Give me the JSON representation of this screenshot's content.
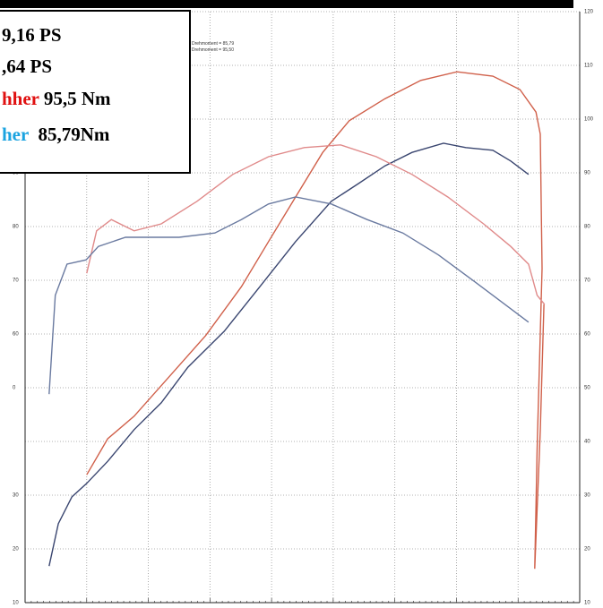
{
  "chart_data": {
    "type": "line",
    "xlim": [
      0,
      9
    ],
    "ylim": [
      10,
      120
    ],
    "yticks": [
      90,
      80,
      70,
      60,
      {
        "value": 50,
        "label": "0"
      },
      30,
      20,
      10
    ],
    "y2lim": [
      10,
      120
    ],
    "y2ticks": [
      120,
      110,
      100,
      90,
      80,
      70,
      60,
      50,
      40,
      30,
      20,
      10
    ],
    "grid": true,
    "annotations": [
      {
        "parts": [
          {
            "text": "9,16 PS",
            "color": "#000000"
          }
        ]
      },
      {
        "parts": [
          {
            "text": ",64 PS",
            "color": "#000000"
          }
        ]
      },
      {
        "parts": [
          {
            "text": "hher",
            "color": "#e01010"
          },
          {
            "text": " 95,5 Nm",
            "color": "#000000"
          }
        ]
      },
      {
        "parts": [
          {
            "text": "her",
            "color": "#1aa3e0"
          },
          {
            "text": "  85,79Nm",
            "color": "#000000"
          }
        ]
      }
    ],
    "notes": [
      "Drehmoment = 85,79",
      "s Drehmoment = 95,50"
    ],
    "series": [
      {
        "color": "#3a4670",
        "x": [
          0.39,
          0.54,
          0.76,
          1.0,
          1.34,
          1.77,
          2.21,
          2.64,
          3.23,
          3.81,
          4.39,
          4.97,
          5.41,
          5.84,
          6.28,
          6.79,
          7.15,
          7.59,
          7.88,
          8.17
        ],
        "values": [
          16.8,
          24.7,
          29.7,
          32.2,
          36.3,
          42.2,
          47.2,
          53.8,
          60.5,
          68.8,
          77.2,
          84.7,
          88,
          91.3,
          93.8,
          95.5,
          94.7,
          94.2,
          92.2,
          89.7
        ]
      },
      {
        "color": "#d0604a",
        "x": [
          1.0,
          1.34,
          1.77,
          2.35,
          2.93,
          3.51,
          3.95,
          4.39,
          4.83,
          5.26,
          5.84,
          6.42,
          7.01,
          7.59,
          8.03,
          8.29,
          8.36,
          8.39,
          8.31,
          8.27,
          8.36,
          8.42
        ],
        "values": [
          33.8,
          40.5,
          44.7,
          52.2,
          59.7,
          68.8,
          77.2,
          85.5,
          93.8,
          99.7,
          103.8,
          107.2,
          108.8,
          108,
          105.5,
          101.3,
          97.2,
          72.2,
          38.8,
          16.3,
          42,
          65.5
        ]
      },
      {
        "color": "#e08a8a",
        "x": [
          1.0,
          1.16,
          1.4,
          1.77,
          2.21,
          2.79,
          3.37,
          3.95,
          4.53,
          5.12,
          5.7,
          6.28,
          6.86,
          7.44,
          7.88,
          8.17,
          8.31,
          8.43
        ],
        "values": [
          71.3,
          79.2,
          81.3,
          79.2,
          80.5,
          84.7,
          89.7,
          93,
          94.7,
          95.2,
          93,
          89.7,
          85.5,
          80.5,
          76.3,
          73,
          67.2,
          65.5
        ]
      },
      {
        "color": "#6a7aa0",
        "x": [
          0.39,
          0.49,
          0.68,
          0.99,
          1.19,
          1.63,
          2.06,
          2.5,
          3.08,
          3.51,
          3.95,
          4.39,
          4.97,
          5.55,
          6.13,
          6.71,
          7.3,
          7.88,
          8.17
        ],
        "values": [
          48.8,
          67.2,
          73,
          73.8,
          76.3,
          78,
          78,
          78,
          78.8,
          81.3,
          84.2,
          85.5,
          84.2,
          81.3,
          78.8,
          74.7,
          69.7,
          64.7,
          62.2
        ]
      }
    ]
  }
}
